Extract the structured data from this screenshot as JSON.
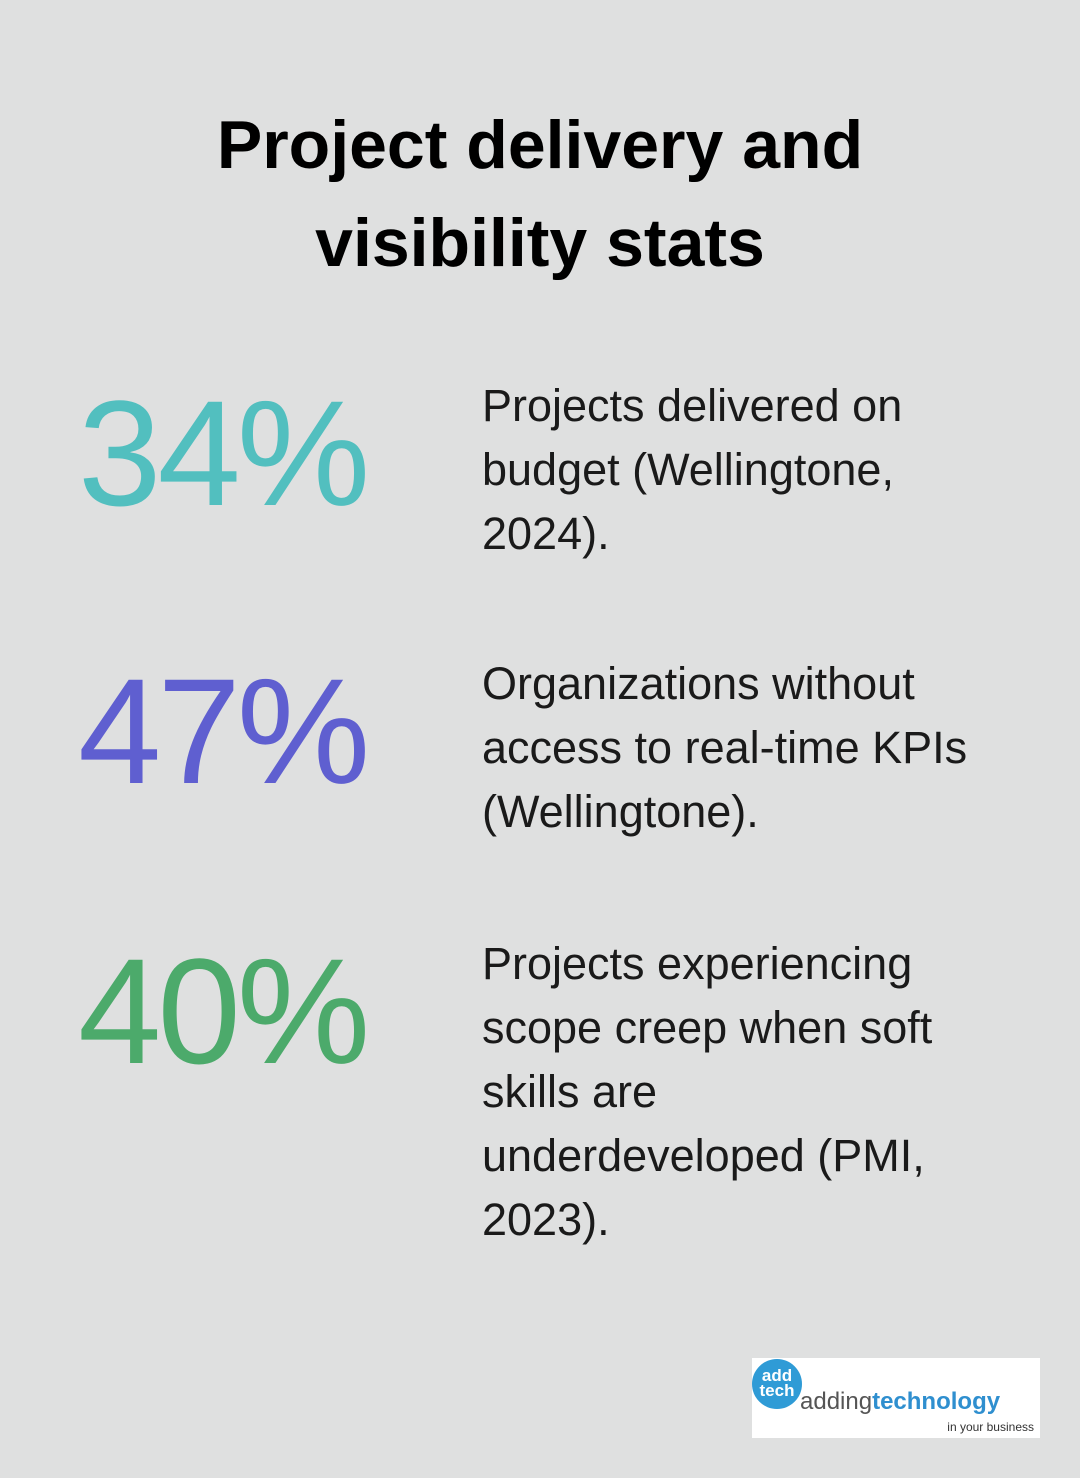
{
  "header": {
    "title_lines": [
      "Project delivery and",
      "visibility stats"
    ]
  },
  "stats": [
    {
      "figure": "34%",
      "color": "#52bfbf",
      "description_lines": [
        "Projects delivered on",
        "budget (Wellingtone,",
        "2024)."
      ]
    },
    {
      "figure": "47%",
      "color": "#5f5fd0",
      "description_lines": [
        "Organizations without",
        "access to real-time KPIs",
        "(Wellingtone)."
      ]
    },
    {
      "figure": "40%",
      "color": "#4caa6b",
      "description_lines": [
        "Projects experiencing",
        "scope creep when soft",
        "skills are",
        "underdeveloped (PMI,",
        "2023)."
      ]
    }
  ],
  "logo": {
    "badge_top": "add",
    "badge_bottom": "tech",
    "name_light": "adding",
    "name_bold": "technology",
    "tagline": "in your business"
  }
}
